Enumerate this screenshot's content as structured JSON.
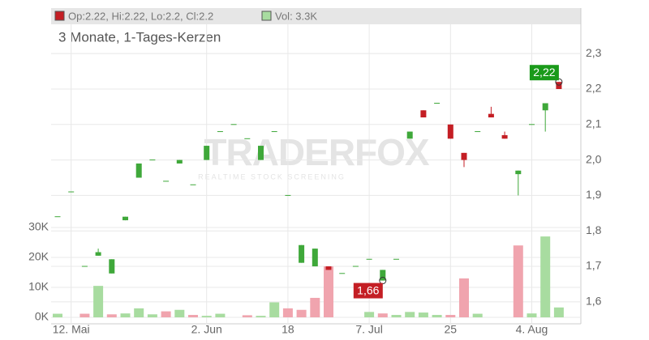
{
  "chart_data": {
    "type": "candlestick",
    "header": {
      "ohlc": "Op:2.22, Hi:2.22, Lo:2.2, Cl:2.2",
      "volume": "Vol: 3.3K"
    },
    "subtitle": "3 Monate, 1-Tages-Kerzen",
    "watermark": {
      "brand": "TRADERFOX",
      "tagline": "REALTIME STOCK SCREENING"
    },
    "categories": [
      null,
      "12. Mai",
      null,
      null,
      null,
      null,
      null,
      null,
      null,
      null,
      null,
      "2. Jun",
      null,
      null,
      null,
      null,
      null,
      "18",
      null,
      null,
      null,
      null,
      null,
      "7. Jul",
      null,
      null,
      null,
      null,
      null,
      "25",
      null,
      null,
      null,
      null,
      null,
      "4. Aug",
      null,
      null
    ],
    "open": [
      1.84,
      1.91,
      1.7,
      1.73,
      1.68,
      1.83,
      1.95,
      2.0,
      1.94,
      1.99,
      1.93,
      2.0,
      2.08,
      2.1,
      2.06,
      2.0,
      2.08,
      1.9,
      1.71,
      1.7,
      1.7,
      1.68,
      1.7,
      1.72,
      1.66,
      1.72,
      2.06,
      2.14,
      2.16,
      2.1,
      2.02,
      2.08,
      2.13,
      2.07,
      1.96,
      2.1,
      2.14,
      2.22
    ],
    "high": [
      1.84,
      1.91,
      1.7,
      1.75,
      1.72,
      1.84,
      1.99,
      2.0,
      1.94,
      2.0,
      1.93,
      2.04,
      2.08,
      2.1,
      2.06,
      2.04,
      2.08,
      1.9,
      1.76,
      1.75,
      1.7,
      1.68,
      1.7,
      1.72,
      1.69,
      1.72,
      2.08,
      2.14,
      2.16,
      2.1,
      2.02,
      2.08,
      2.15,
      2.08,
      1.97,
      2.1,
      2.16,
      2.22
    ],
    "low": [
      1.84,
      1.91,
      1.7,
      1.73,
      1.68,
      1.83,
      1.95,
      2.0,
      1.94,
      1.99,
      1.93,
      2.0,
      2.08,
      2.1,
      2.06,
      2.0,
      2.08,
      1.9,
      1.71,
      1.7,
      1.69,
      1.68,
      1.7,
      1.72,
      1.66,
      1.72,
      2.06,
      2.12,
      2.16,
      2.06,
      1.98,
      2.08,
      2.12,
      2.06,
      1.9,
      2.1,
      2.08,
      2.2
    ],
    "close": [
      1.84,
      1.91,
      1.7,
      1.74,
      1.72,
      1.84,
      1.99,
      2.0,
      1.94,
      2.0,
      1.93,
      2.04,
      2.08,
      2.1,
      2.06,
      2.04,
      2.08,
      1.9,
      1.76,
      1.75,
      1.69,
      1.68,
      1.7,
      1.72,
      1.69,
      1.72,
      2.08,
      2.12,
      2.16,
      2.06,
      2.0,
      2.08,
      2.12,
      2.06,
      1.97,
      2.1,
      2.16,
      2.2
    ],
    "volume": [
      1200,
      0,
      1200,
      10500,
      1000,
      1300,
      3000,
      1000,
      2000,
      2500,
      800,
      500,
      1200,
      0,
      700,
      500,
      5000,
      3000,
      2500,
      6500,
      17000,
      0,
      0,
      1800,
      1300,
      800,
      1800,
      1600,
      800,
      800,
      13000,
      1200,
      0,
      0,
      24000,
      1300,
      27000,
      3300
    ],
    "volume_colors": [
      "#a8dca0",
      "#a8dca0",
      "#f0a4ae",
      "#a8dca0",
      "#f0a4ae",
      "#a8dca0",
      "#a8dca0",
      "#a8dca0",
      "#f0a4ae",
      "#a8dca0",
      "#f0a4ae",
      "#a8dca0",
      "#a8dca0",
      "#a8dca0",
      "#f0a4ae",
      "#a8dca0",
      "#a8dca0",
      "#f0a4ae",
      "#f0a4ae",
      "#f0a4ae",
      "#f0a4ae",
      "#a8dca0",
      "#a8dca0",
      "#a8dca0",
      "#f0a4ae",
      "#a8dca0",
      "#a8dca0",
      "#a8dca0",
      "#a8dca0",
      "#f0a4ae",
      "#f0a4ae",
      "#a8dca0",
      "#a8dca0",
      "#a8dca0",
      "#f0a4ae",
      "#a8dca0",
      "#a8dca0",
      "#a8dca0"
    ],
    "up_color": "#3fa83a",
    "down_color": "#c41e24",
    "ylim": [
      1.538,
      2.378
    ],
    "yticks": [
      {
        "value": 1.6,
        "label": "1,6"
      },
      {
        "value": 1.7,
        "label": "1,7"
      },
      {
        "value": 1.8,
        "label": "1,8"
      },
      {
        "value": 1.9,
        "label": "1,9"
      },
      {
        "value": 2.0,
        "label": "2,0"
      },
      {
        "value": 2.1,
        "label": "2,1"
      },
      {
        "value": 2.2,
        "label": "2,2"
      },
      {
        "value": 2.3,
        "label": "2,3"
      }
    ],
    "vlim": [
      0,
      30000
    ],
    "vticks": [
      {
        "value": 0,
        "label": "0K"
      },
      {
        "value": 10000,
        "label": "10K"
      },
      {
        "value": 20000,
        "label": "20K"
      },
      {
        "value": 30000,
        "label": "30K"
      }
    ],
    "annotations": [
      {
        "label": "2,22",
        "value": 2.22,
        "color": "#1a9a1a"
      },
      {
        "label": "1,66",
        "value": 1.66,
        "color": "#c41e24"
      }
    ],
    "grid": true
  }
}
